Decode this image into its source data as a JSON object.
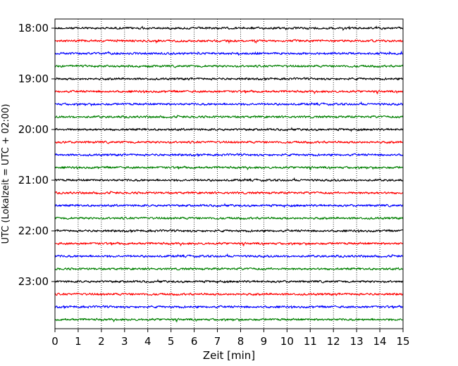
{
  "chart_data": {
    "type": "line",
    "title": "",
    "xlabel": "Zeit  [min]",
    "ylabel": "UTC (Lokalzeit = UTC + 02:00)",
    "xlim": [
      0,
      15
    ],
    "x_ticks": [
      0,
      1,
      2,
      3,
      4,
      5,
      6,
      7,
      8,
      9,
      10,
      11,
      12,
      13,
      14,
      15
    ],
    "y_tick_labels": [
      "18:00",
      "19:00",
      "20:00",
      "21:00",
      "22:00",
      "23:00"
    ],
    "grid": "vertical dotted",
    "trace_colors": [
      "#000000",
      "#ff0000",
      "#0000ff",
      "#008000"
    ],
    "traces_start": "18:00",
    "trace_interval_min": 15,
    "trace_count": 24
  }
}
